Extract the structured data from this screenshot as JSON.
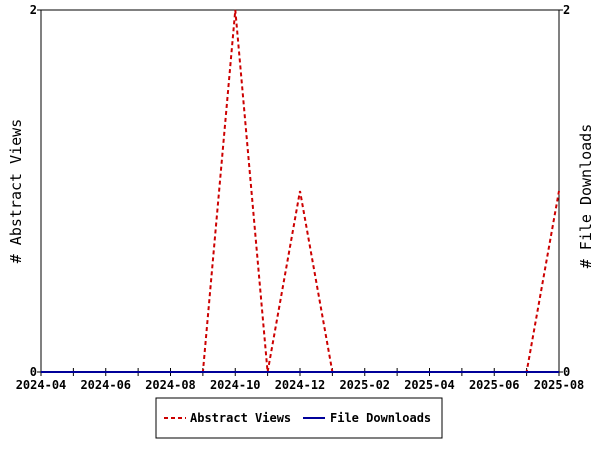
{
  "chart_data": {
    "type": "line",
    "x_type": "month",
    "x_ticks": [
      "2024-04",
      "2024-06",
      "2024-08",
      "2024-10",
      "2024-12",
      "2025-02",
      "2025-04",
      "2025-06",
      "2025-08"
    ],
    "xlim": [
      "2024-04",
      "2025-08"
    ],
    "ylabel_left": "# Abstract Views",
    "ylabel_right": "# File Downloads",
    "ylim_left": [
      0,
      2
    ],
    "ylim_right": [
      0,
      2
    ],
    "y_ticks_left": [
      "0",
      "2"
    ],
    "y_ticks_right": [
      "0",
      "2"
    ],
    "grid": false,
    "legend_position": "bottom",
    "series": [
      {
        "name": "Abstract Views",
        "axis": "left",
        "color": "#cc0000",
        "style": "dashed",
        "x": [
          "2024-04",
          "2024-05",
          "2024-06",
          "2024-07",
          "2024-08",
          "2024-09",
          "2024-10",
          "2024-11",
          "2024-12",
          "2025-01",
          "2025-02",
          "2025-03",
          "2025-04",
          "2025-05",
          "2025-06",
          "2025-07",
          "2025-08"
        ],
        "values": [
          0,
          0,
          0,
          0,
          0,
          0,
          2,
          0,
          1,
          0,
          0,
          0,
          0,
          0,
          0,
          0,
          1
        ]
      },
      {
        "name": "File Downloads",
        "axis": "right",
        "color": "#000099",
        "style": "solid",
        "x": [
          "2024-04",
          "2024-05",
          "2024-06",
          "2024-07",
          "2024-08",
          "2024-09",
          "2024-10",
          "2024-11",
          "2024-12",
          "2025-01",
          "2025-02",
          "2025-03",
          "2025-04",
          "2025-05",
          "2025-06",
          "2025-07",
          "2025-08"
        ],
        "values": [
          0,
          0,
          0,
          0,
          0,
          0,
          0,
          0,
          0,
          0,
          0,
          0,
          0,
          0,
          0,
          0,
          0
        ]
      }
    ]
  }
}
